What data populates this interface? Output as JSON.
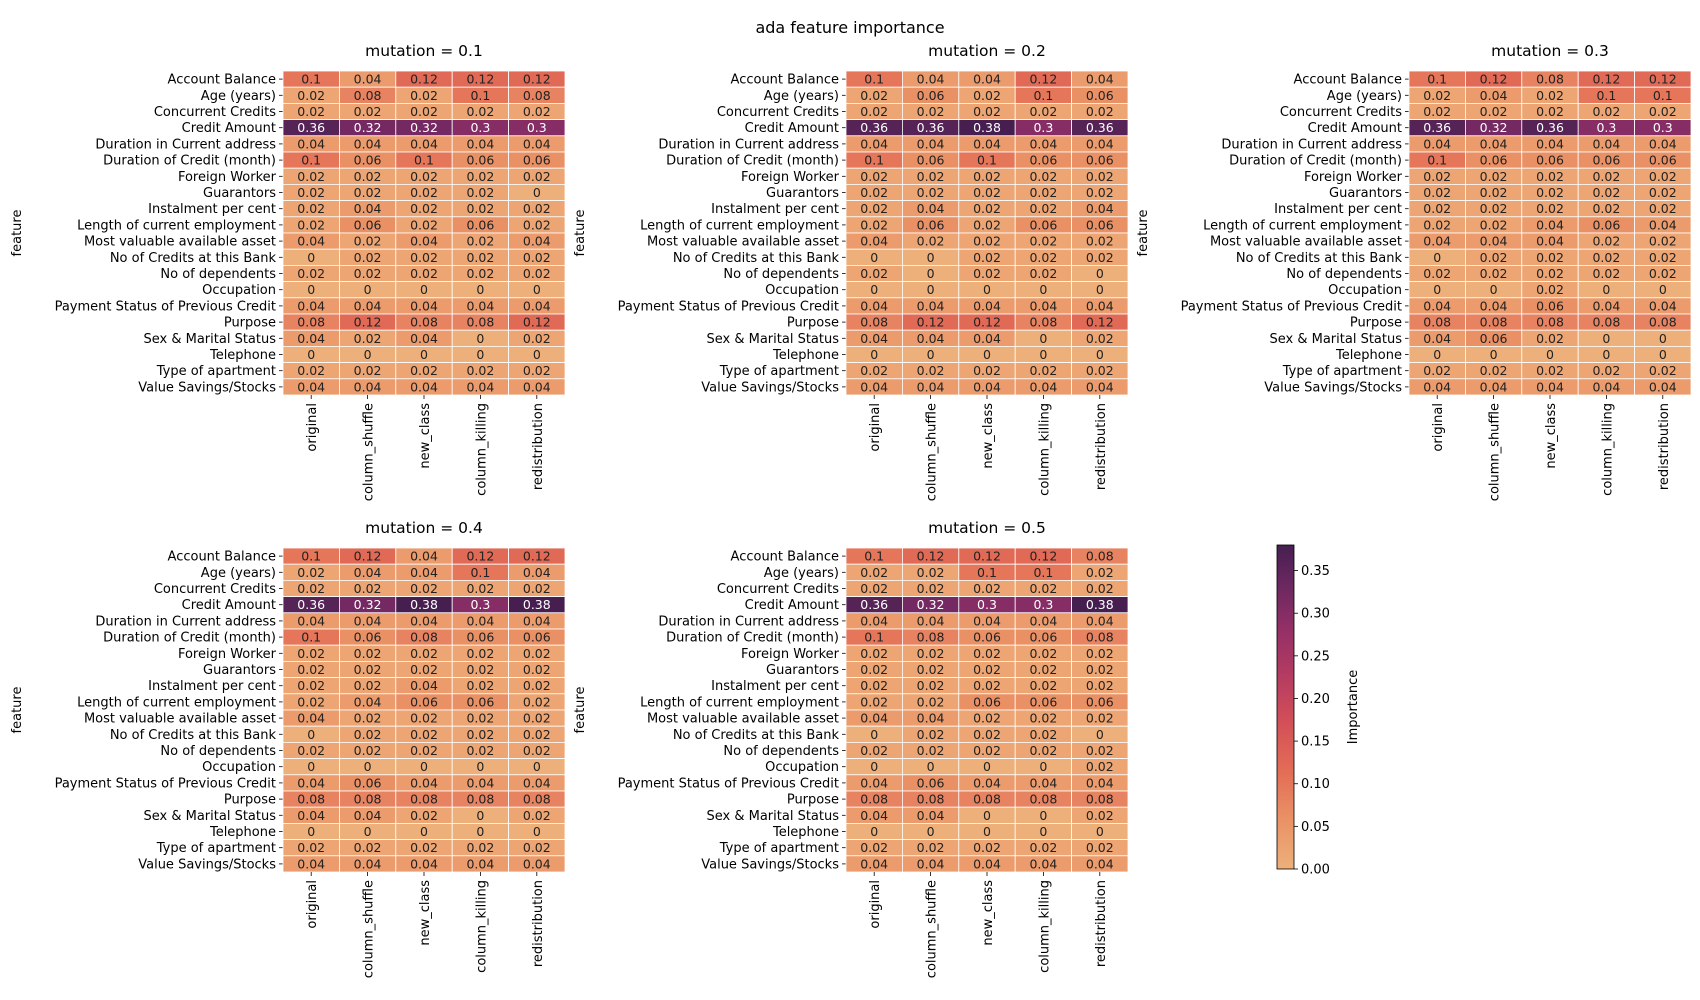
{
  "figure_title": "ada feature importance",
  "chart_data": {
    "type": "heatmap",
    "title": "ada feature importance",
    "ylabel": "feature",
    "colorbar": {
      "label": "Importance",
      "range": [
        0,
        0.38
      ],
      "ticks": [
        "0.00",
        "0.05",
        "0.10",
        "0.15",
        "0.20",
        "0.25",
        "0.30",
        "0.35"
      ],
      "colormap": "flare"
    },
    "features": [
      "Account Balance",
      "Age (years)",
      "Concurrent Credits",
      "Credit Amount",
      "Duration in Current address",
      "Duration of Credit (month)",
      "Foreign Worker",
      "Guarantors",
      "Instalment per cent",
      "Length of current employment",
      "Most valuable available asset",
      "No of Credits at this Bank",
      "No of dependents",
      "Occupation",
      "Payment Status of Previous Credit",
      "Purpose",
      "Sex & Marital Status",
      "Telephone",
      "Type of apartment",
      "Value Savings/Stocks"
    ],
    "columns": [
      "original",
      "column_shuffle",
      "new_class",
      "column_killing",
      "redistribution"
    ],
    "panels": [
      {
        "title": "mutation = 0.1",
        "values": [
          [
            0.1,
            0.04,
            0.12,
            0.12,
            0.12
          ],
          [
            0.02,
            0.08,
            0.02,
            0.1,
            0.08
          ],
          [
            0.02,
            0.02,
            0.02,
            0.02,
            0.02
          ],
          [
            0.36,
            0.32,
            0.32,
            0.3,
            0.3
          ],
          [
            0.04,
            0.04,
            0.04,
            0.04,
            0.04
          ],
          [
            0.1,
            0.06,
            0.1,
            0.06,
            0.06
          ],
          [
            0.02,
            0.02,
            0.02,
            0.02,
            0.02
          ],
          [
            0.02,
            0.02,
            0.02,
            0.02,
            0
          ],
          [
            0.02,
            0.04,
            0.02,
            0.02,
            0.02
          ],
          [
            0.02,
            0.06,
            0.02,
            0.06,
            0.02
          ],
          [
            0.04,
            0.02,
            0.04,
            0.02,
            0.04
          ],
          [
            0,
            0.02,
            0.02,
            0.02,
            0.02
          ],
          [
            0.02,
            0.02,
            0.02,
            0.02,
            0.02
          ],
          [
            0,
            0,
            0,
            0,
            0
          ],
          [
            0.04,
            0.04,
            0.04,
            0.04,
            0.04
          ],
          [
            0.08,
            0.12,
            0.08,
            0.08,
            0.12
          ],
          [
            0.04,
            0.02,
            0.04,
            0,
            0.02
          ],
          [
            0,
            0,
            0,
            0,
            0
          ],
          [
            0.02,
            0.02,
            0.02,
            0.02,
            0.02
          ],
          [
            0.04,
            0.04,
            0.04,
            0.04,
            0.04
          ]
        ]
      },
      {
        "title": "mutation = 0.2",
        "values": [
          [
            0.1,
            0.04,
            0.04,
            0.12,
            0.04
          ],
          [
            0.02,
            0.06,
            0.02,
            0.1,
            0.06
          ],
          [
            0.02,
            0.02,
            0.02,
            0.02,
            0.02
          ],
          [
            0.36,
            0.36,
            0.38,
            0.3,
            0.36
          ],
          [
            0.04,
            0.04,
            0.04,
            0.04,
            0.04
          ],
          [
            0.1,
            0.06,
            0.1,
            0.06,
            0.06
          ],
          [
            0.02,
            0.02,
            0.02,
            0.02,
            0.02
          ],
          [
            0.02,
            0.02,
            0.02,
            0.02,
            0.02
          ],
          [
            0.02,
            0.04,
            0.02,
            0.02,
            0.04
          ],
          [
            0.02,
            0.06,
            0.02,
            0.06,
            0.06
          ],
          [
            0.04,
            0.02,
            0.02,
            0.02,
            0.02
          ],
          [
            0,
            0,
            0.02,
            0.02,
            0.02
          ],
          [
            0.02,
            0,
            0.02,
            0.02,
            0
          ],
          [
            0,
            0,
            0,
            0,
            0
          ],
          [
            0.04,
            0.04,
            0.04,
            0.04,
            0.04
          ],
          [
            0.08,
            0.12,
            0.12,
            0.08,
            0.12
          ],
          [
            0.04,
            0.04,
            0.04,
            0,
            0.02
          ],
          [
            0,
            0,
            0,
            0,
            0
          ],
          [
            0.02,
            0.02,
            0.02,
            0.02,
            0.02
          ],
          [
            0.04,
            0.04,
            0.04,
            0.04,
            0.04
          ]
        ]
      },
      {
        "title": "mutation = 0.3",
        "values": [
          [
            0.1,
            0.12,
            0.08,
            0.12,
            0.12
          ],
          [
            0.02,
            0.04,
            0.02,
            0.1,
            0.1
          ],
          [
            0.02,
            0.02,
            0.02,
            0.02,
            0.02
          ],
          [
            0.36,
            0.32,
            0.36,
            0.3,
            0.3
          ],
          [
            0.04,
            0.04,
            0.04,
            0.04,
            0.04
          ],
          [
            0.1,
            0.06,
            0.06,
            0.06,
            0.06
          ],
          [
            0.02,
            0.02,
            0.02,
            0.02,
            0.02
          ],
          [
            0.02,
            0.02,
            0.02,
            0.02,
            0.02
          ],
          [
            0.02,
            0.02,
            0.02,
            0.02,
            0.02
          ],
          [
            0.02,
            0.02,
            0.04,
            0.06,
            0.04
          ],
          [
            0.04,
            0.04,
            0.04,
            0.02,
            0.02
          ],
          [
            0,
            0.02,
            0.02,
            0.02,
            0.02
          ],
          [
            0.02,
            0.02,
            0.02,
            0.02,
            0.02
          ],
          [
            0,
            0,
            0.02,
            0,
            0
          ],
          [
            0.04,
            0.04,
            0.06,
            0.04,
            0.04
          ],
          [
            0.08,
            0.08,
            0.08,
            0.08,
            0.08
          ],
          [
            0.04,
            0.06,
            0.02,
            0,
            0
          ],
          [
            0,
            0,
            0,
            0,
            0
          ],
          [
            0.02,
            0.02,
            0.02,
            0.02,
            0.02
          ],
          [
            0.04,
            0.04,
            0.04,
            0.04,
            0.04
          ]
        ]
      },
      {
        "title": "mutation = 0.4",
        "values": [
          [
            0.1,
            0.12,
            0.04,
            0.12,
            0.12
          ],
          [
            0.02,
            0.04,
            0.04,
            0.1,
            0.04
          ],
          [
            0.02,
            0.02,
            0.02,
            0.02,
            0.02
          ],
          [
            0.36,
            0.32,
            0.38,
            0.3,
            0.38
          ],
          [
            0.04,
            0.04,
            0.04,
            0.04,
            0.04
          ],
          [
            0.1,
            0.06,
            0.08,
            0.06,
            0.06
          ],
          [
            0.02,
            0.02,
            0.02,
            0.02,
            0.02
          ],
          [
            0.02,
            0.02,
            0.02,
            0.02,
            0.02
          ],
          [
            0.02,
            0.02,
            0.04,
            0.02,
            0.02
          ],
          [
            0.02,
            0.04,
            0.06,
            0.06,
            0.02
          ],
          [
            0.04,
            0.02,
            0.02,
            0.02,
            0.02
          ],
          [
            0,
            0.02,
            0.02,
            0.02,
            0.02
          ],
          [
            0.02,
            0.02,
            0.02,
            0.02,
            0.02
          ],
          [
            0,
            0,
            0,
            0,
            0
          ],
          [
            0.04,
            0.06,
            0.04,
            0.04,
            0.04
          ],
          [
            0.08,
            0.08,
            0.08,
            0.08,
            0.08
          ],
          [
            0.04,
            0.04,
            0.02,
            0,
            0.02
          ],
          [
            0,
            0,
            0,
            0,
            0
          ],
          [
            0.02,
            0.02,
            0.02,
            0.02,
            0.02
          ],
          [
            0.04,
            0.04,
            0.04,
            0.04,
            0.04
          ]
        ]
      },
      {
        "title": "mutation = 0.5",
        "values": [
          [
            0.1,
            0.12,
            0.12,
            0.12,
            0.08
          ],
          [
            0.02,
            0.02,
            0.1,
            0.1,
            0.02
          ],
          [
            0.02,
            0.02,
            0.02,
            0.02,
            0.02
          ],
          [
            0.36,
            0.32,
            0.3,
            0.3,
            0.38
          ],
          [
            0.04,
            0.04,
            0.04,
            0.04,
            0.04
          ],
          [
            0.1,
            0.08,
            0.06,
            0.06,
            0.08
          ],
          [
            0.02,
            0.02,
            0.02,
            0.02,
            0.02
          ],
          [
            0.02,
            0.02,
            0.02,
            0.02,
            0.02
          ],
          [
            0.02,
            0.02,
            0.02,
            0.02,
            0.02
          ],
          [
            0.02,
            0.02,
            0.06,
            0.06,
            0.06
          ],
          [
            0.04,
            0.04,
            0.02,
            0.02,
            0.02
          ],
          [
            0,
            0.02,
            0.02,
            0.02,
            0
          ],
          [
            0.02,
            0.02,
            0.02,
            0.02,
            0.02
          ],
          [
            0,
            0,
            0,
            0,
            0.02
          ],
          [
            0.04,
            0.06,
            0.04,
            0.04,
            0.04
          ],
          [
            0.08,
            0.08,
            0.08,
            0.08,
            0.08
          ],
          [
            0.04,
            0.04,
            0,
            0,
            0.02
          ],
          [
            0,
            0,
            0,
            0,
            0
          ],
          [
            0.02,
            0.02,
            0.02,
            0.02,
            0.02
          ],
          [
            0.04,
            0.04,
            0.04,
            0.04,
            0.04
          ]
        ]
      }
    ]
  }
}
